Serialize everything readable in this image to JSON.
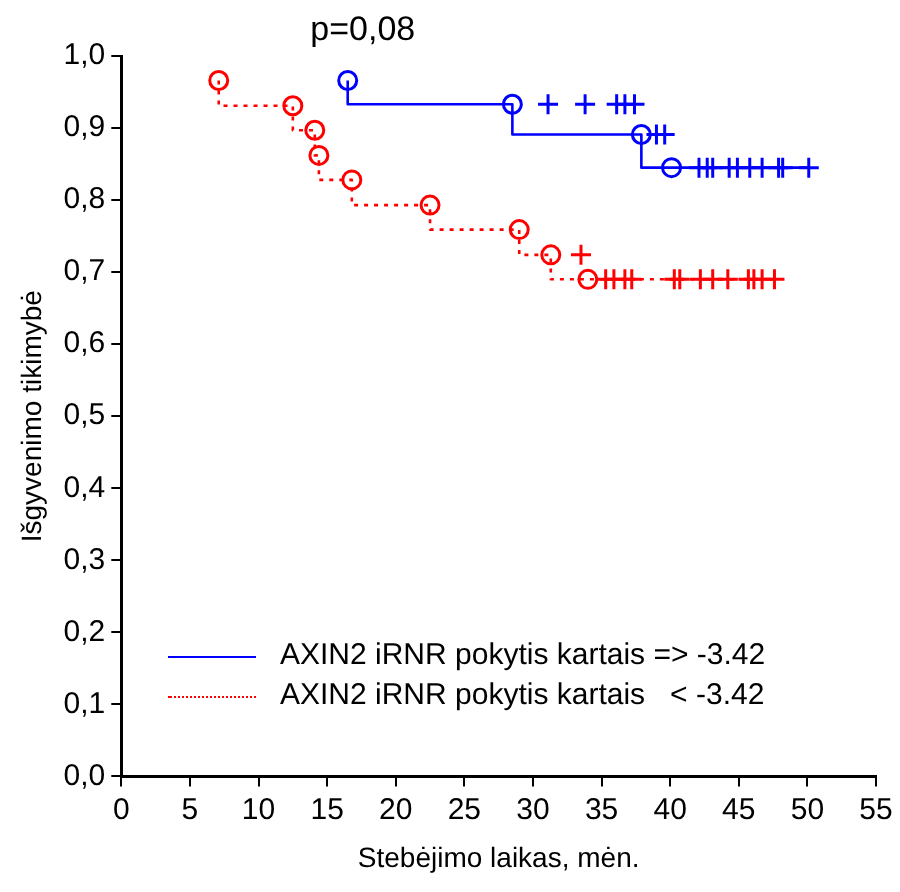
{
  "chart_data": {
    "type": "step",
    "xlabel": "Stebėjimo laikas, mėn.",
    "ylabel": "Išgyvenimo tikimybė",
    "annotations": [
      "p=0,08"
    ],
    "xlim": [
      0,
      55
    ],
    "xticks": [
      0,
      5,
      10,
      15,
      20,
      25,
      30,
      35,
      40,
      45,
      50,
      55
    ],
    "ylim": [
      0,
      1
    ],
    "yticks": [
      {
        "value": 0,
        "label": "0,0"
      },
      {
        "value": 0.1,
        "label": "0,1"
      },
      {
        "value": 0.2,
        "label": "0,2"
      },
      {
        "value": 0.3,
        "label": "0,3"
      },
      {
        "value": 0.4,
        "label": "0,4"
      },
      {
        "value": 0.5,
        "label": "0,5"
      },
      {
        "value": 0.6,
        "label": "0,6"
      },
      {
        "value": 0.7,
        "label": "0,7"
      },
      {
        "value": 0.8,
        "label": "0,8"
      },
      {
        "value": 0.9,
        "label": "0,9"
      },
      {
        "value": 1,
        "label": "1,0"
      }
    ],
    "grid": false,
    "legend": "bottom left",
    "series": [
      {
        "name": "AXIN2 iRNR pokytis kartais => -3.42",
        "type": "step",
        "color": "#0000ff",
        "line_style": "solid",
        "marker": "none",
        "x": [
          16.5,
          28.5,
          37.9,
          40.1,
          50.1
        ],
        "values": [
          0.966,
          0.933,
          0.891,
          0.845,
          0.845
        ]
      },
      {
        "type": "scatter",
        "color": "#0000ff",
        "marker": "circle",
        "x": [
          16.5,
          28.5,
          37.9,
          40.1
        ],
        "values": [
          0.966,
          0.933,
          0.891,
          0.845
        ]
      },
      {
        "type": "scatter",
        "color": "#0000ff",
        "marker": "cross",
        "x": [
          31.1,
          33.8,
          36.1,
          36.7,
          37.4,
          39.0,
          39.6,
          42.1,
          42.7,
          43.1,
          44.3,
          44.9,
          45.8,
          46.7,
          47.9,
          48.2,
          50.1
        ],
        "values": [
          0.933,
          0.933,
          0.933,
          0.933,
          0.933,
          0.891,
          0.891,
          0.845,
          0.845,
          0.845,
          0.845,
          0.845,
          0.845,
          0.845,
          0.845,
          0.845,
          0.845
        ]
      },
      {
        "name": "AXIN2 iRNR pokytis kartais   < -3.42",
        "type": "step",
        "color": "#ff0000",
        "line_style": "dotted",
        "marker": "none",
        "x": [
          7.1,
          12.5,
          14.1,
          14.4,
          16.8,
          22.5,
          29.0,
          31.3,
          34.0,
          47.6
        ],
        "values": [
          0.966,
          0.931,
          0.897,
          0.862,
          0.828,
          0.793,
          0.759,
          0.724,
          0.69,
          0.69
        ]
      },
      {
        "type": "scatter",
        "color": "#ff0000",
        "marker": "circle",
        "x": [
          7.1,
          12.5,
          14.1,
          14.4,
          16.8,
          22.5,
          29.0,
          31.3,
          34.0
        ],
        "values": [
          0.966,
          0.931,
          0.897,
          0.862,
          0.828,
          0.793,
          0.759,
          0.724,
          0.69
        ]
      },
      {
        "type": "scatter",
        "color": "#ff0000",
        "marker": "cross",
        "x": [
          33.5,
          35.3,
          35.9,
          36.7,
          37.2,
          40.3,
          40.7,
          42.2,
          43.1,
          44.2,
          45.7,
          46.1,
          46.7,
          47.6
        ],
        "values": [
          0.724,
          0.69,
          0.69,
          0.69,
          0.69,
          0.69,
          0.69,
          0.69,
          0.69,
          0.69,
          0.69,
          0.69,
          0.69,
          0.69
        ]
      }
    ]
  }
}
